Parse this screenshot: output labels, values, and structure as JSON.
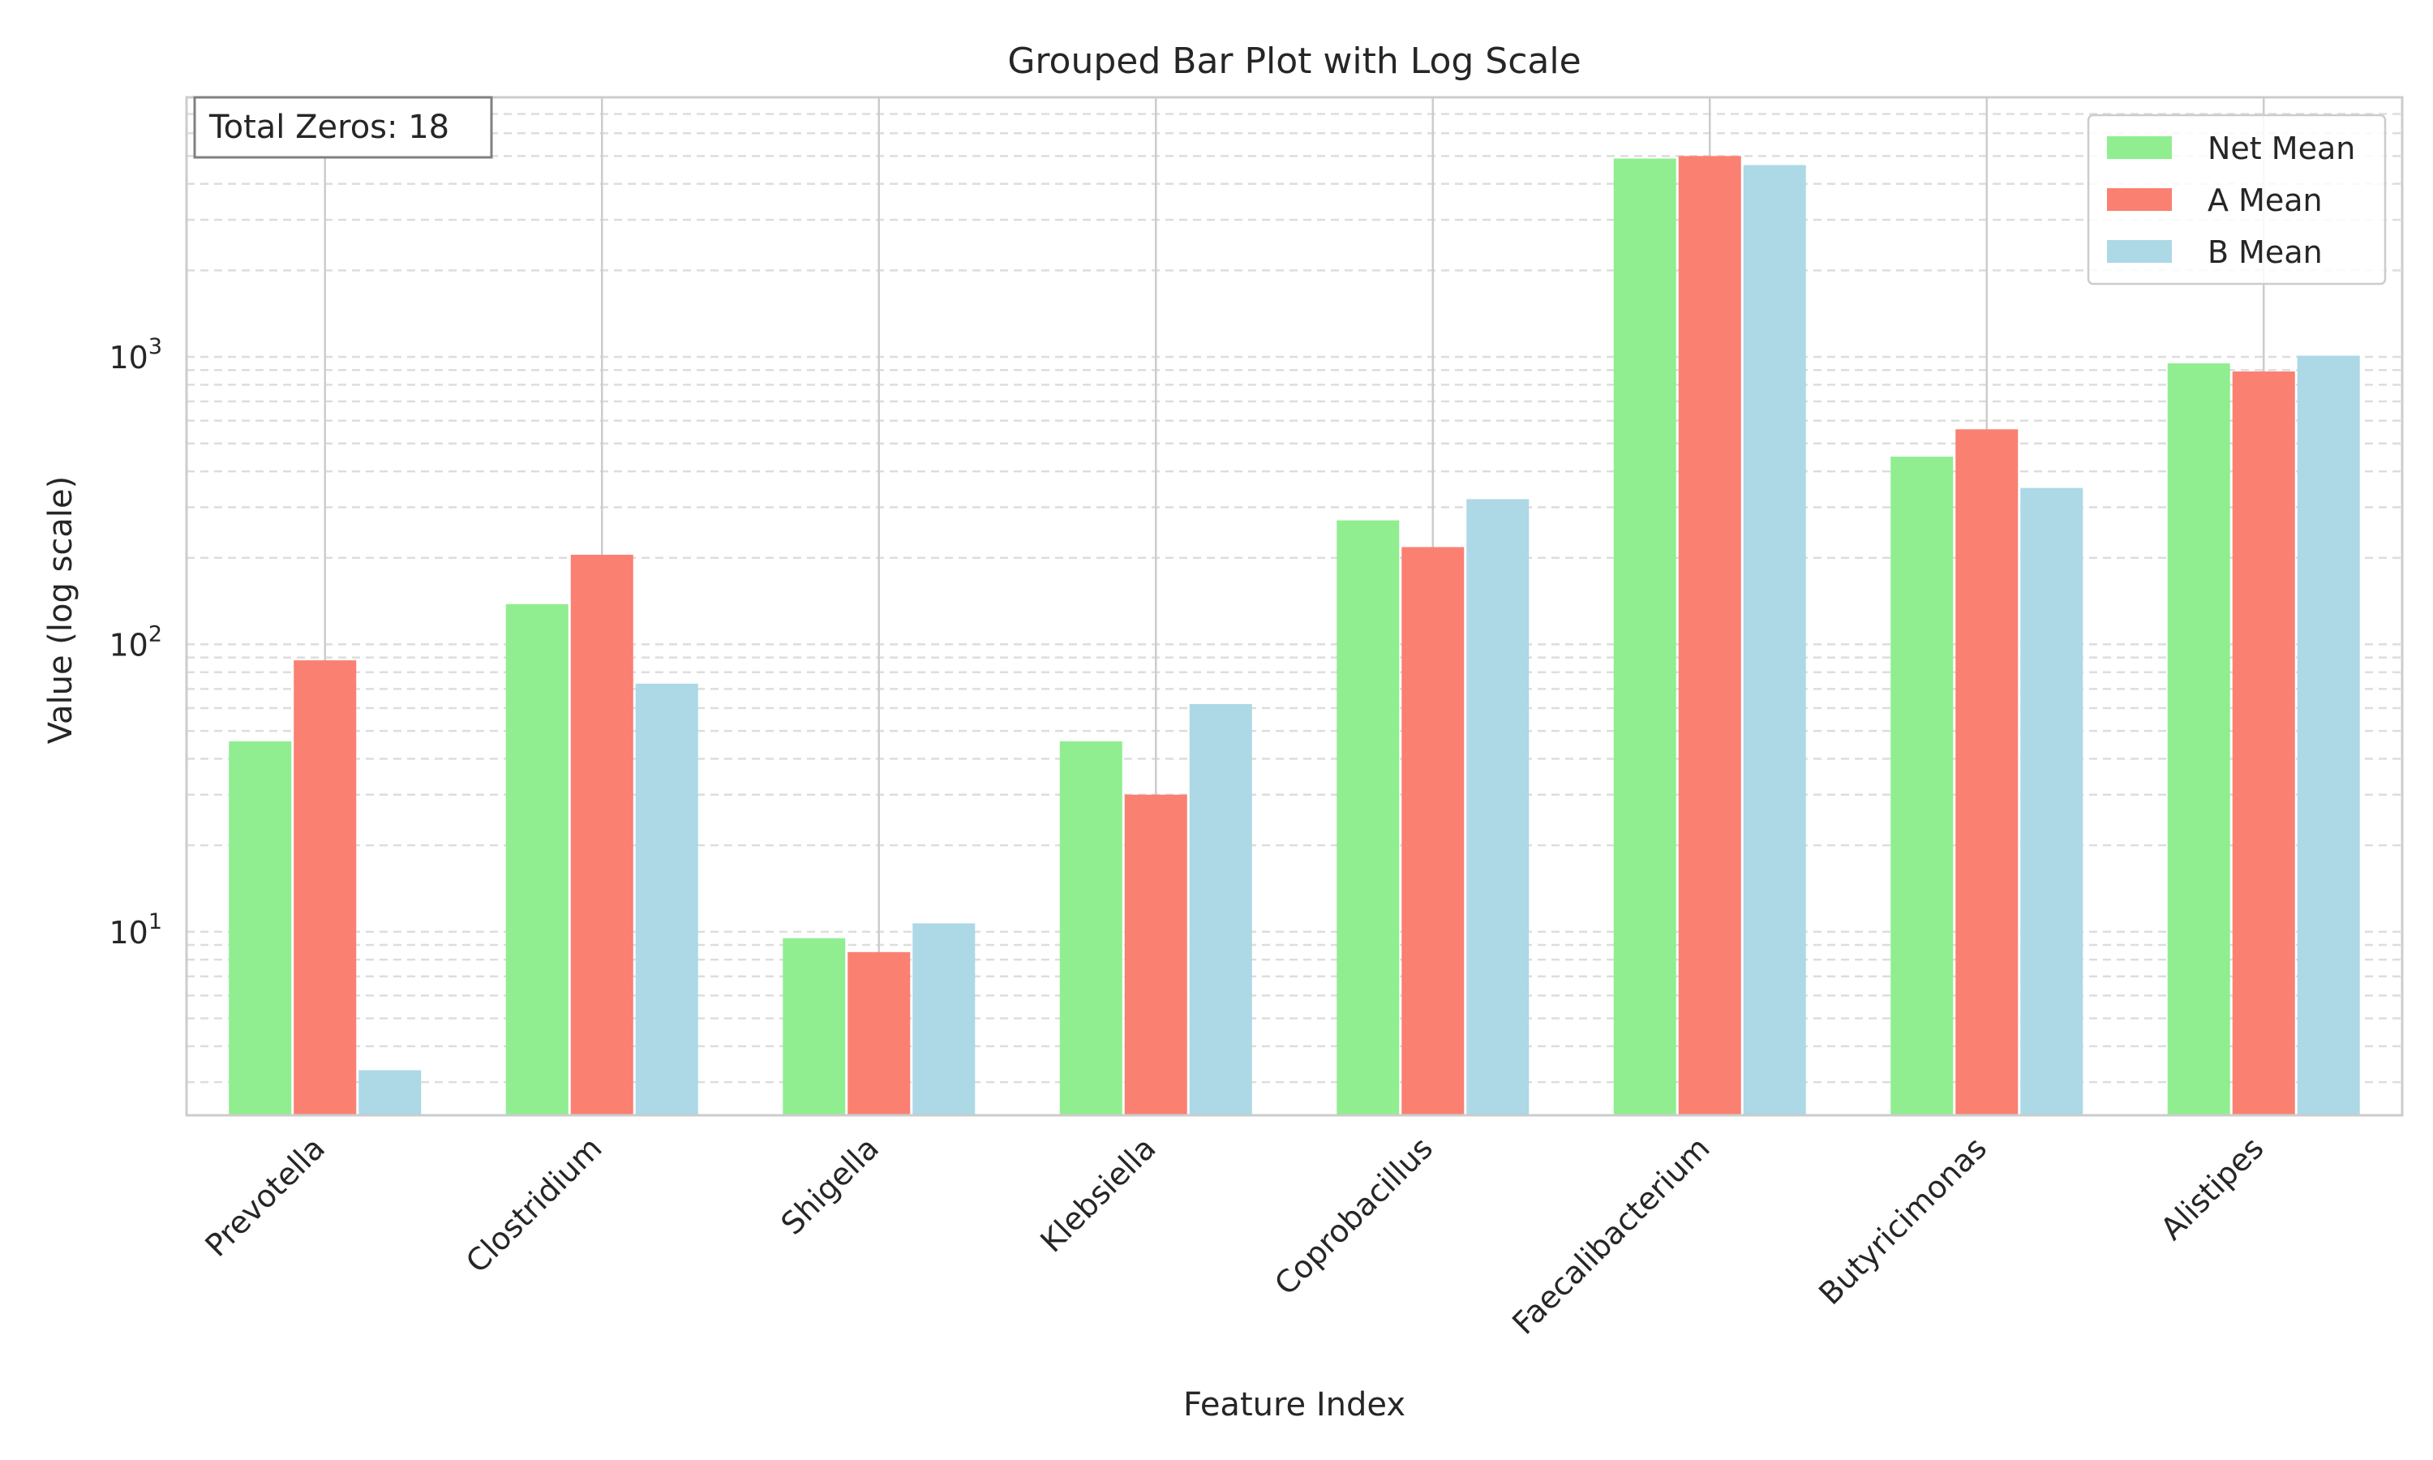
{
  "chart_data": {
    "type": "bar",
    "title": "Grouped Bar Plot with Log Scale",
    "xlabel": "Feature Index",
    "ylabel": "Value (log scale)",
    "yscale": "log",
    "ylim": [
      2.3,
      8000
    ],
    "grid": "y-major-and-minor dashed",
    "legend_position": "top-right",
    "annotation": "Total Zeros: 18",
    "categories": [
      "Prevotella",
      "Clostridium",
      "Shigella",
      "Klebsiella",
      "Coprobacillus",
      "Faecalibacterium",
      "Butyricimonas",
      "Alistipes"
    ],
    "series": [
      {
        "name": "Net Mean",
        "color": "#90ee90",
        "values": [
          46,
          138,
          9.5,
          46,
          270,
          4900,
          450,
          950
        ]
      },
      {
        "name": "A Mean",
        "color": "#fa8072",
        "values": [
          88,
          205,
          8.5,
          30,
          218,
          5000,
          560,
          890
        ]
      },
      {
        "name": "B Mean",
        "color": "#add8e6",
        "values": [
          3.3,
          73,
          10.7,
          62,
          320,
          4650,
          350,
          1010
        ]
      }
    ],
    "yticks": [
      {
        "value": 10,
        "base": "10",
        "exp": "1"
      },
      {
        "value": 100,
        "base": "10",
        "exp": "2"
      },
      {
        "value": 1000,
        "base": "10",
        "exp": "3"
      }
    ]
  }
}
